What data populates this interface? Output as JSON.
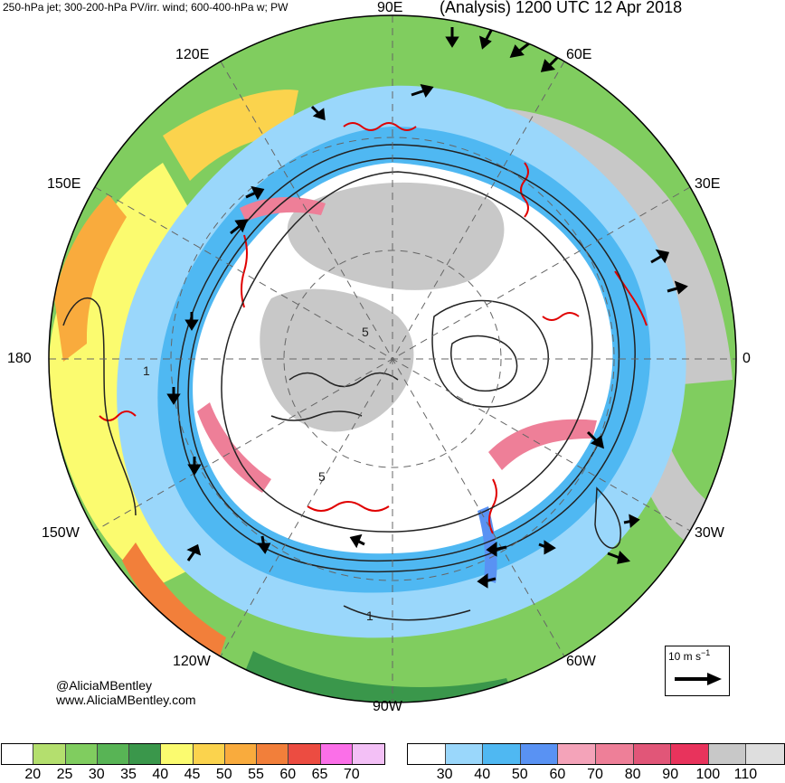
{
  "header": {
    "left_title": "250-hPa jet; 300-200-hPa PV/irr. wind; 600-400-hPa w; PW",
    "right_title": "(Analysis) 1200 UTC 12 Apr 2018"
  },
  "longitude_labels": {
    "e90": "90E",
    "e60": "60E",
    "e30": "30E",
    "zero": "0",
    "w30": "30W",
    "w60": "60W",
    "w90": "90W",
    "w120": "120W",
    "w150": "150W",
    "d180": "180",
    "e150": "150E",
    "e120": "120E"
  },
  "credits": {
    "twitter": "@AliciaMBentley",
    "website": "www.AliciaMBentley.com"
  },
  "vector_key": {
    "label": "10 m s",
    "superscript": "−1"
  },
  "colorbar_pw": {
    "colors": [
      "#ffffff",
      "#b4df6e",
      "#80cd5f",
      "#58b455",
      "#3a974b",
      "#fbfb6f",
      "#fbd34d",
      "#f9ab3d",
      "#f27f3a",
      "#ec4c41",
      "#fb6fe8",
      "#f3c0f6"
    ],
    "ticks": [
      "20",
      "25",
      "30",
      "35",
      "40",
      "45",
      "50",
      "55",
      "60",
      "65",
      "70"
    ]
  },
  "colorbar_jet": {
    "colors": [
      "#ffffff",
      "#9ad7fb",
      "#4fb8f2",
      "#5992f3",
      "#f4a3b9",
      "#ee7f98",
      "#e15678",
      "#e8335c",
      "#c8c8c8",
      "#dedede"
    ],
    "ticks": [
      "30",
      "40",
      "50",
      "60",
      "70",
      "80",
      "90",
      "100",
      "110"
    ]
  },
  "map_colors": {
    "ocean_gray": "#c8c8c8",
    "jet_light": "#9ad7fb",
    "jet_mid": "#4fb8f2",
    "jet_strong": "#5992f3",
    "jet_pink": "#ee7f98",
    "pw_green": "#80cd5f",
    "pw_dark_green": "#3a974b",
    "pw_yellow": "#fbfb6f",
    "pw_orange": "#f9ab3d",
    "ascent_red": "#e00000",
    "contour_black": "#222222",
    "graticule": "#666666"
  }
}
